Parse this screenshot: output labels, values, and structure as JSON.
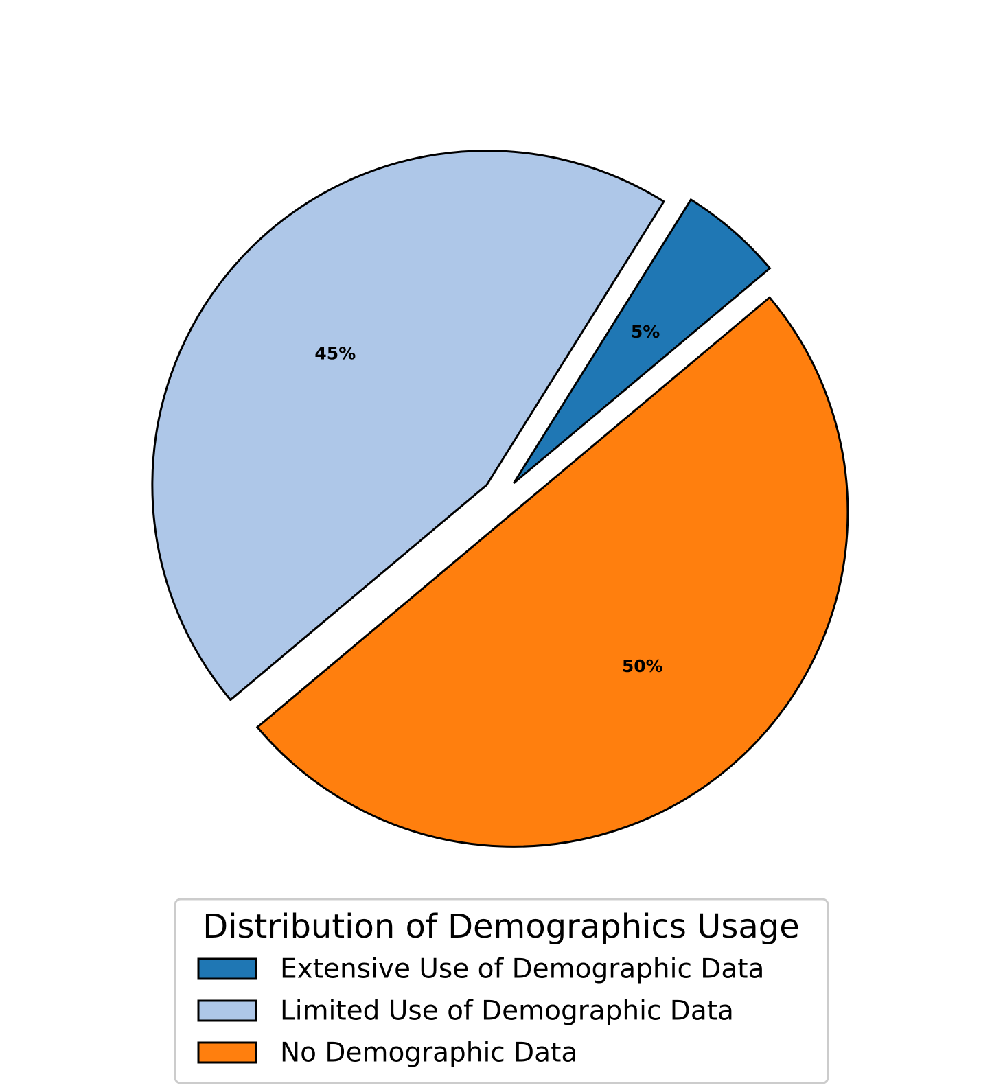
{
  "chart_data": {
    "type": "pie",
    "categories": [
      "Extensive Use of Demographic Data",
      "Limited Use of Demographic Data",
      "No Demographic Data"
    ],
    "values": [
      5,
      45,
      50
    ],
    "value_labels": [
      "5%",
      "45%",
      "50%"
    ],
    "colors": [
      "#1f77b4",
      "#aec7e8",
      "#ff7f0e"
    ],
    "edge_color": "#000000",
    "start_angle_deg": 40,
    "exploded": true,
    "legend": {
      "title": "Distribution of Demographics Usage",
      "placement": "bottom-center",
      "entries": [
        "Extensive Use of Demographic Data",
        "Limited Use of Demographic Data",
        "No Demographic Data"
      ]
    }
  }
}
